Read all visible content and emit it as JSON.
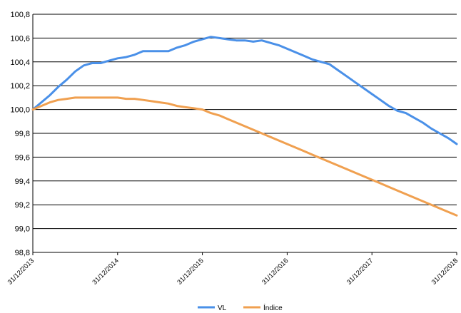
{
  "chart_data": {
    "type": "line",
    "title": "",
    "xlabel": "",
    "ylabel": "",
    "ylim": [
      98.8,
      100.8
    ],
    "y_ticks": [
      "100,8",
      "100,6",
      "100,4",
      "100,2",
      "100,0",
      "99,8",
      "99,6",
      "99,4",
      "99,2",
      "99,0",
      "98,8"
    ],
    "y_tick_values": [
      100.8,
      100.6,
      100.4,
      100.2,
      100.0,
      99.8,
      99.6,
      99.4,
      99.2,
      99.0,
      98.8
    ],
    "x_ticks": [
      "31/12/2013",
      "31/12/2014",
      "31/12/2015",
      "31/12/2016",
      "31/12/2017",
      "31/12/2018"
    ],
    "xlim": [
      "31/12/2013",
      "31/12/2018"
    ],
    "grid": "horizontal",
    "legend_position": "bottom",
    "series": [
      {
        "name": "VL",
        "color": "#4a90e8",
        "x": [
          2014.0,
          2014.1,
          2014.2,
          2014.3,
          2014.4,
          2014.5,
          2014.6,
          2014.7,
          2014.8,
          2014.9,
          2015.0,
          2015.1,
          2015.2,
          2015.3,
          2015.4,
          2015.5,
          2015.6,
          2015.7,
          2015.8,
          2015.9,
          2016.0,
          2016.1,
          2016.2,
          2016.3,
          2016.4,
          2016.5,
          2016.6,
          2016.7,
          2016.8,
          2016.9,
          2017.0,
          2017.1,
          2017.2,
          2017.3,
          2017.4,
          2017.5,
          2017.6,
          2017.7,
          2017.8,
          2017.9,
          2018.0,
          2018.1,
          2018.2,
          2018.3,
          2018.4,
          2018.5,
          2018.6,
          2018.7,
          2018.8,
          2018.9,
          2019.0
        ],
        "values": [
          100.0,
          100.06,
          100.12,
          100.19,
          100.25,
          100.32,
          100.37,
          100.39,
          100.39,
          100.41,
          100.43,
          100.44,
          100.46,
          100.49,
          100.49,
          100.49,
          100.49,
          100.52,
          100.54,
          100.57,
          100.59,
          100.61,
          100.6,
          100.59,
          100.58,
          100.58,
          100.57,
          100.58,
          100.56,
          100.54,
          100.51,
          100.48,
          100.45,
          100.42,
          100.4,
          100.38,
          100.33,
          100.28,
          100.23,
          100.18,
          100.13,
          100.08,
          100.03,
          99.99,
          99.97,
          99.93,
          99.89,
          99.84,
          99.8,
          99.76,
          99.71
        ]
      },
      {
        "name": "Índice",
        "color": "#f0a050",
        "x": [
          2014.0,
          2014.1,
          2014.2,
          2014.3,
          2014.4,
          2014.5,
          2014.6,
          2014.7,
          2014.8,
          2014.9,
          2015.0,
          2015.1,
          2015.2,
          2015.3,
          2015.4,
          2015.5,
          2015.6,
          2015.7,
          2015.8,
          2015.9,
          2016.0,
          2016.1,
          2016.2,
          2016.3,
          2016.4,
          2016.5,
          2016.6,
          2016.7,
          2016.8,
          2016.9,
          2017.0,
          2017.1,
          2017.2,
          2017.3,
          2017.4,
          2017.5,
          2017.6,
          2017.7,
          2017.8,
          2017.9,
          2018.0,
          2018.1,
          2018.2,
          2018.3,
          2018.4,
          2018.5,
          2018.6,
          2018.7,
          2018.8,
          2018.9,
          2019.0
        ],
        "values": [
          100.0,
          100.03,
          100.06,
          100.08,
          100.09,
          100.1,
          100.1,
          100.1,
          100.1,
          100.1,
          100.1,
          100.09,
          100.09,
          100.08,
          100.07,
          100.06,
          100.05,
          100.03,
          100.02,
          100.01,
          100.0,
          99.97,
          99.95,
          99.92,
          99.89,
          99.86,
          99.83,
          99.8,
          99.77,
          99.74,
          99.71,
          99.68,
          99.65,
          99.62,
          99.59,
          99.56,
          99.53,
          99.5,
          99.47,
          99.44,
          99.41,
          99.38,
          99.35,
          99.32,
          99.29,
          99.26,
          99.23,
          99.2,
          99.17,
          99.14,
          99.11
        ]
      }
    ]
  }
}
